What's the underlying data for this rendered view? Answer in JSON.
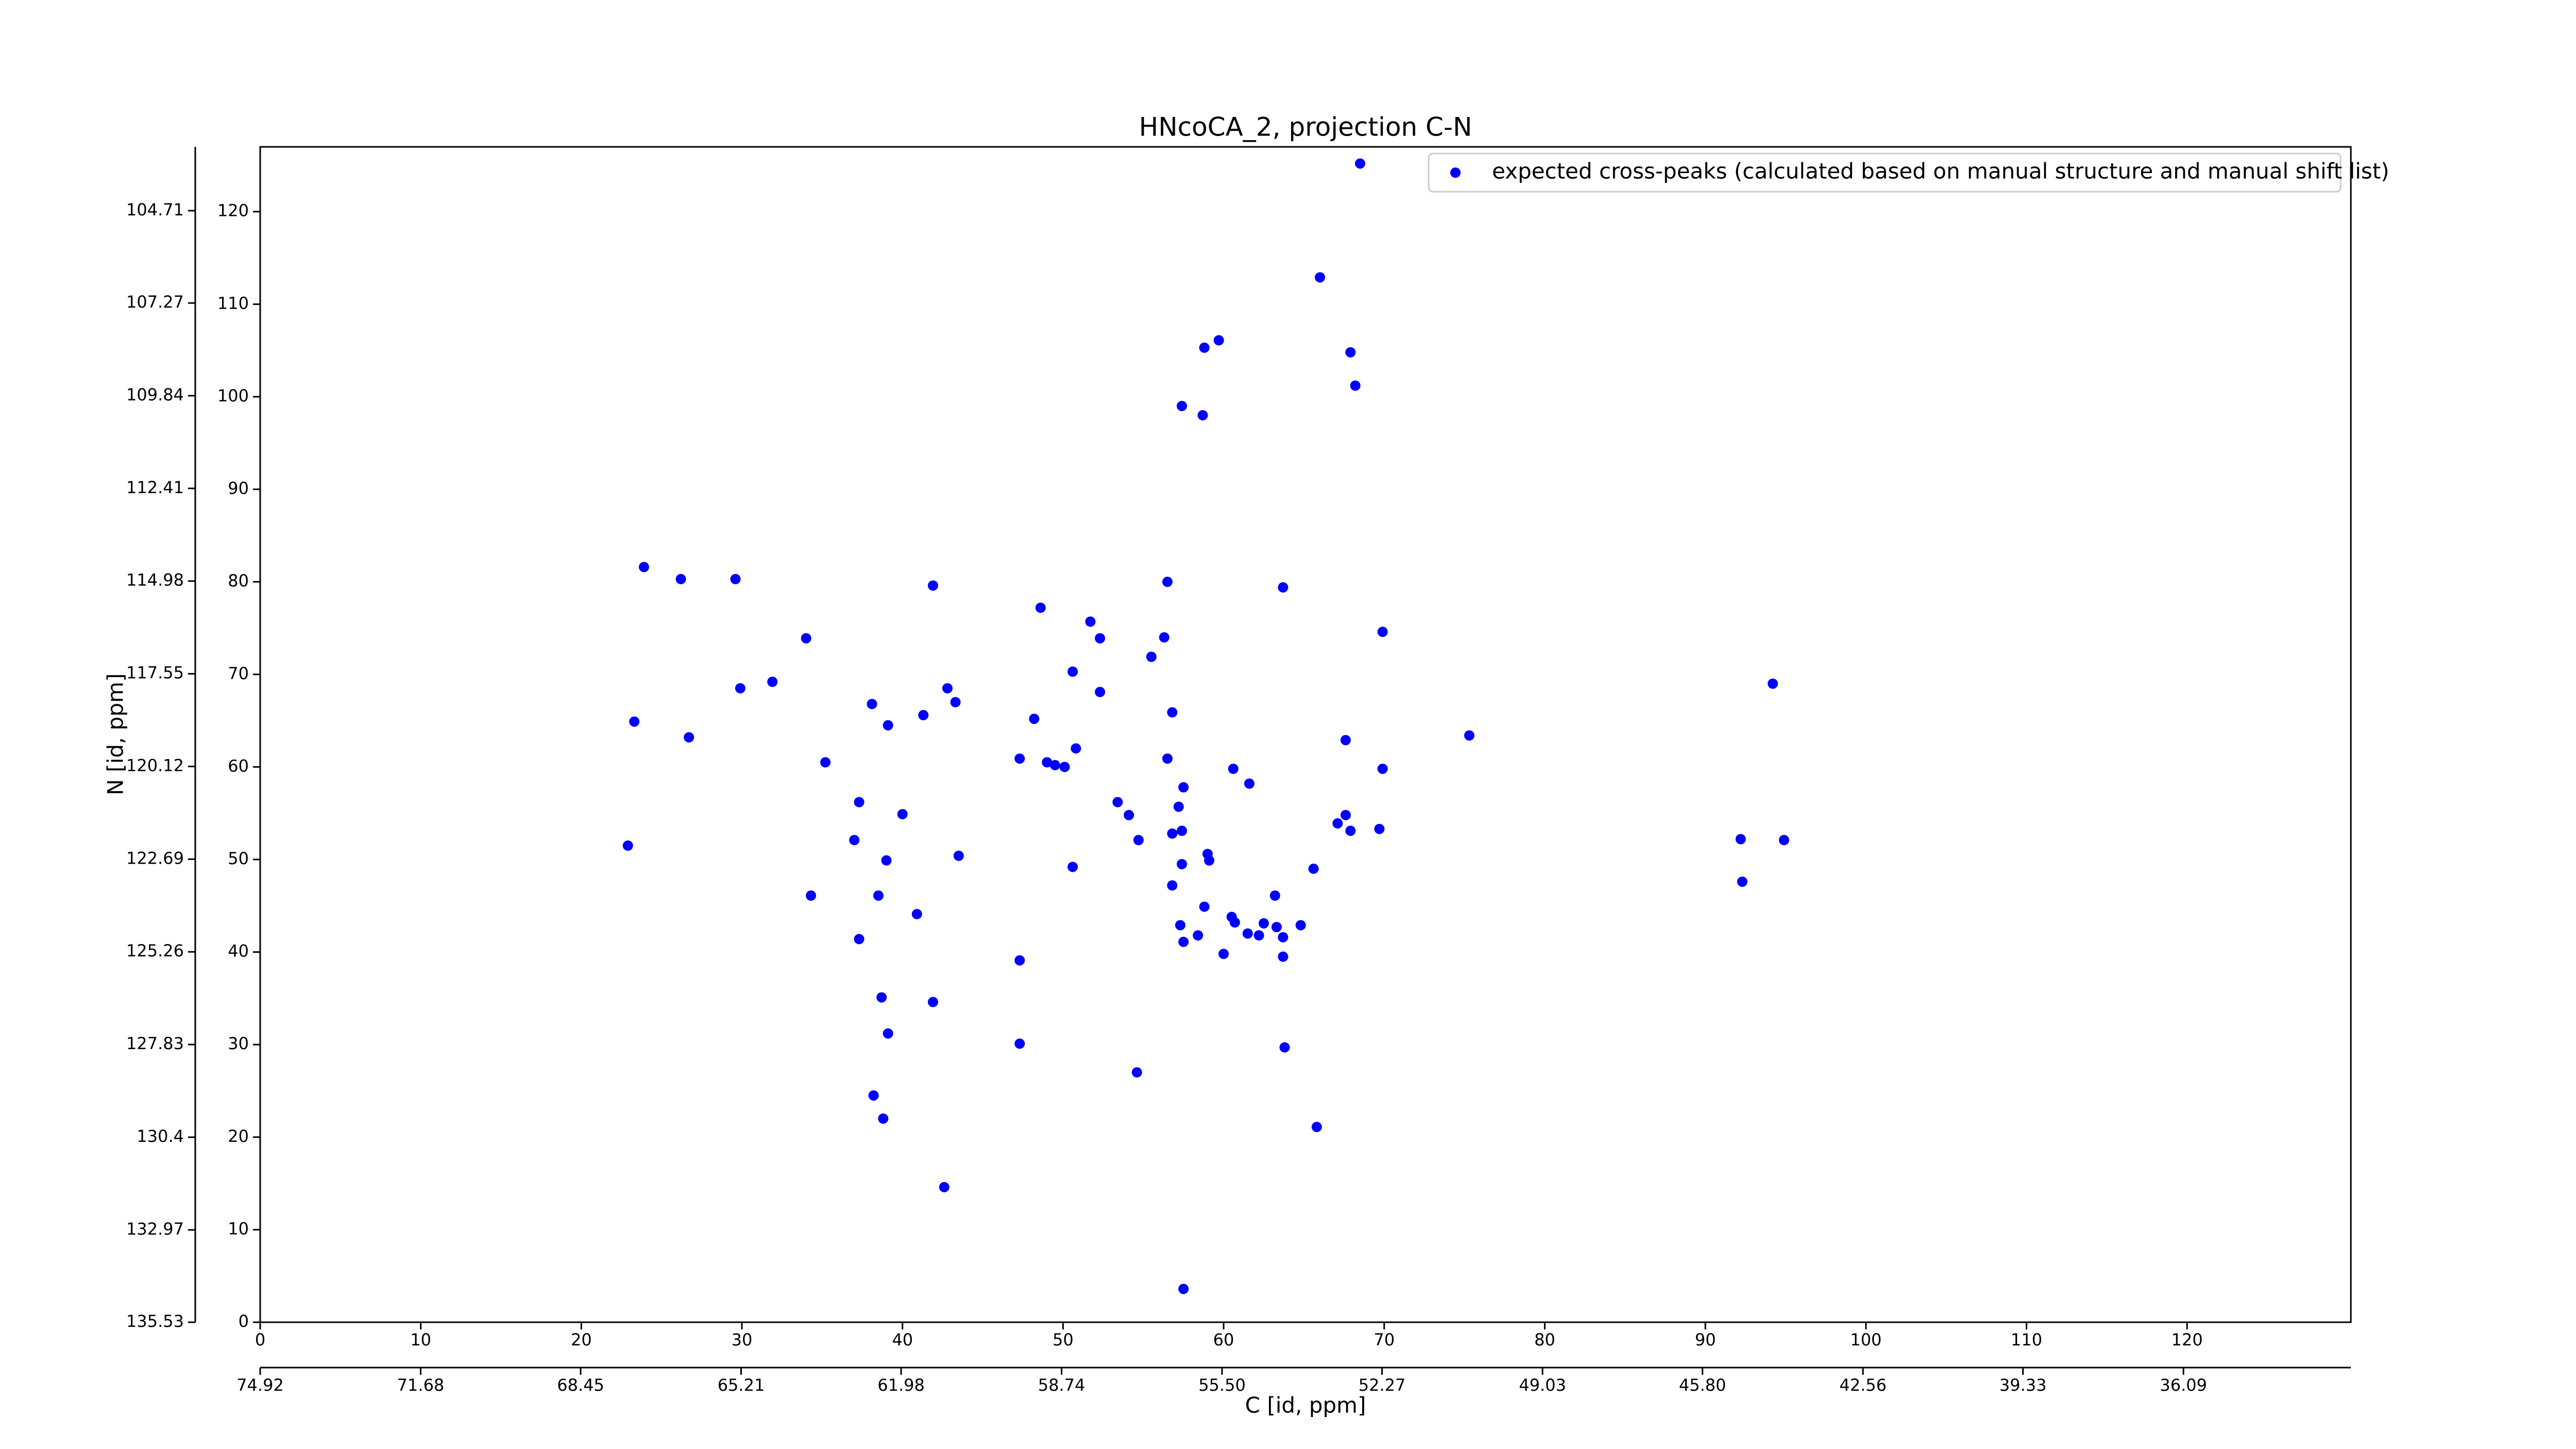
{
  "chart_data": {
    "type": "scatter",
    "title": "HNcoCA_2, projection C-N",
    "xlabel": "C [id, ppm]",
    "ylabel": "N [id, ppm]",
    "xlim": [
      0,
      130.2
    ],
    "xticks": [
      0,
      10,
      20,
      30,
      40,
      50,
      60,
      70,
      80,
      90,
      100,
      110,
      120
    ],
    "ylim": [
      0,
      127
    ],
    "yticks": [
      0,
      10,
      20,
      30,
      40,
      50,
      60,
      70,
      80,
      90,
      100,
      110,
      120
    ],
    "x2lim": [
      74.92,
      32.71
    ],
    "x2ticks": [
      74.92,
      71.68,
      68.45,
      65.21,
      61.98,
      58.74,
      {
        "value": 55.5,
        "label": "55.50"
      },
      52.27,
      49.03,
      {
        "value": 45.8,
        "label": "45.80"
      },
      42.56,
      39.33,
      36.09
    ],
    "y2lim": [
      135.53,
      102.94
    ],
    "y2ticks": [
      135.53,
      132.97,
      130.4,
      127.83,
      125.26,
      122.69,
      120.12,
      117.55,
      114.98,
      112.41,
      109.84,
      107.27,
      104.71
    ],
    "y2tick_labels_override": null,
    "legend": "upper right",
    "x": [
      68.5,
      66.0,
      58.8,
      59.7,
      67.9,
      68.2,
      57.4,
      58.7,
      23.9,
      26.2,
      29.6,
      41.9,
      56.5,
      63.7,
      48.6,
      51.7,
      52.3,
      34.0,
      56.3,
      69.9,
      55.5,
      50.6,
      52.3,
      29.9,
      31.9,
      38.1,
      42.8,
      43.3,
      39.1,
      41.3,
      48.2,
      56.8,
      23.3,
      26.7,
      67.6,
      75.3,
      47.3,
      49.0,
      49.5,
      50.1,
      50.8,
      35.2,
      56.5,
      60.6,
      69.9,
      61.6,
      57.5,
      53.4,
      37.3,
      40.0,
      54.1,
      57.2,
      67.1,
      67.9,
      67.6,
      69.7,
      54.7,
      56.8,
      57.4,
      37.0,
      22.9,
      43.5,
      39.0,
      50.6,
      59.0,
      59.1,
      57.4,
      65.6,
      92.2,
      94.9,
      92.3,
      34.3,
      38.5,
      40.9,
      56.8,
      58.8,
      60.5,
      63.2,
      37.3,
      57.3,
      57.5,
      58.4,
      60.7,
      61.5,
      62.5,
      63.3,
      63.7,
      64.8,
      62.2,
      60.0,
      63.7,
      47.3,
      38.7,
      41.9,
      39.1,
      47.3,
      63.8,
      54.6,
      38.2,
      38.8,
      65.8,
      42.6,
      57.5,
      94.2
    ],
    "series": [
      {
        "name": "expected cross-peaks (calculated based on manual structure and manual shift list)",
        "color": "#0000ff",
        "values": [
          125.2,
          112.9,
          105.3,
          106.1,
          104.8,
          101.2,
          99.0,
          98.0,
          81.6,
          80.3,
          80.3,
          79.6,
          80.0,
          79.4,
          77.2,
          75.7,
          73.9,
          73.9,
          74.0,
          74.6,
          71.9,
          70.3,
          68.1,
          68.5,
          69.2,
          66.8,
          68.5,
          67.0,
          64.5,
          65.6,
          65.2,
          65.9,
          64.9,
          63.2,
          62.9,
          63.4,
          60.9,
          60.5,
          60.2,
          60.0,
          62.0,
          60.5,
          60.9,
          59.8,
          59.8,
          58.2,
          57.8,
          56.2,
          56.2,
          54.9,
          54.8,
          55.7,
          53.9,
          53.1,
          54.8,
          53.3,
          52.1,
          52.8,
          53.1,
          52.1,
          51.5,
          50.4,
          49.9,
          49.2,
          50.6,
          49.9,
          49.5,
          49.0,
          52.2,
          52.1,
          47.6,
          46.1,
          46.1,
          44.1,
          47.2,
          44.9,
          43.8,
          46.1,
          41.4,
          42.9,
          41.1,
          41.8,
          43.2,
          42.0,
          43.1,
          42.7,
          41.6,
          42.9,
          41.8,
          39.8,
          39.5,
          39.1,
          35.1,
          34.6,
          31.2,
          30.1,
          29.7,
          27.0,
          24.5,
          22.0,
          21.1,
          14.6,
          3.6,
          69.0
        ]
      }
    ]
  }
}
